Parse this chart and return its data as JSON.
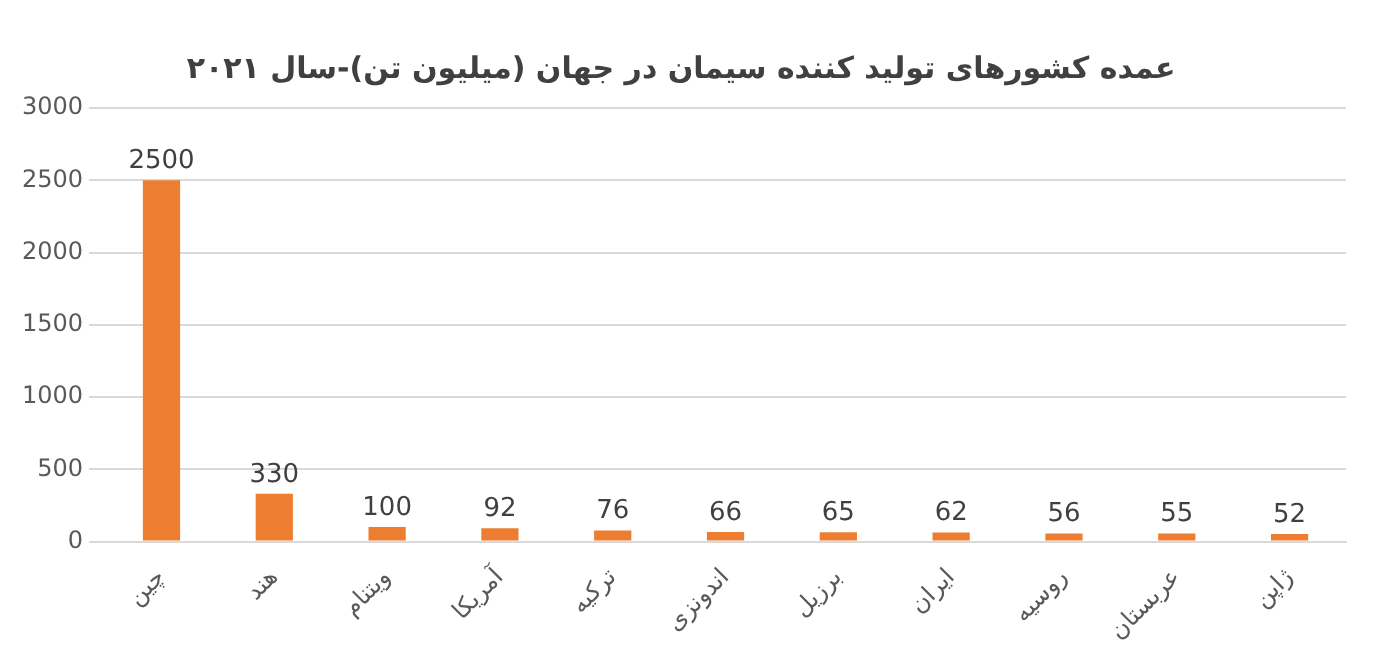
{
  "chart_data": {
    "type": "bar",
    "title": "عمده کشورهای تولید کننده سیمان در جهان (میلیون تن)-سال ۲۰۲۱",
    "categories": [
      "چین",
      "هند",
      "ویتنام",
      "آمریکا",
      "ترکیه",
      "اندونزی",
      "برزیل",
      "ایران",
      "روسیه",
      "عربستان",
      "ژاپن"
    ],
    "values": [
      2500,
      330,
      100,
      92,
      76,
      66,
      65,
      62,
      56,
      55,
      52
    ],
    "color": "#ed7d31",
    "ylim": [
      0,
      3000
    ],
    "yticks": [
      0,
      500,
      1000,
      1500,
      2000,
      2500,
      3000
    ],
    "grid": "y",
    "data_labels": true,
    "legend": false
  }
}
